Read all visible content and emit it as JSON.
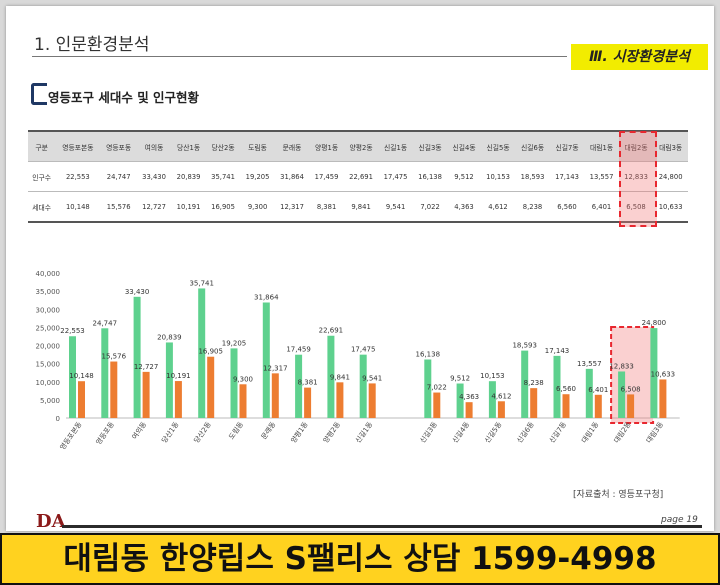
{
  "header": {
    "section_title": "1. 인문환경분석",
    "section_tag": "Ⅲ. 시장환경분석",
    "subtitle": "영등포구 세대수 및 인구현황"
  },
  "table": {
    "columns": [
      "구분",
      "영등포본동",
      "영등포동",
      "여의동",
      "당산1동",
      "당산2동",
      "도림동",
      "문래동",
      "양평1동",
      "양평2동",
      "신길1동",
      "신길3동",
      "신길4동",
      "신길5동",
      "신길6동",
      "신길7동",
      "대림1동",
      "대림2동",
      "대림3동"
    ],
    "rows": [
      {
        "label": "인구수",
        "values": [
          "22,553",
          "24,747",
          "33,430",
          "20,839",
          "35,741",
          "19,205",
          "31,864",
          "17,459",
          "22,691",
          "17,475",
          "16,138",
          "9,512",
          "10,153",
          "18,593",
          "17,143",
          "13,557",
          "12,833",
          "24,800"
        ]
      },
      {
        "label": "세대수",
        "values": [
          "10,148",
          "15,576",
          "12,727",
          "10,191",
          "16,905",
          "9,300",
          "12,317",
          "8,381",
          "9,841",
          "9,541",
          "7,022",
          "4,363",
          "4,612",
          "8,238",
          "6,560",
          "6,401",
          "6,508",
          "10,633"
        ]
      }
    ],
    "highlight_column": "대림2동"
  },
  "chart_data": {
    "type": "bar",
    "categories": [
      "영등포본동",
      "영등포동",
      "여의동",
      "당산1동",
      "당산2동",
      "도림동",
      "문래동",
      "양평1동",
      "양평2동",
      "신길1동",
      "",
      "신길3동",
      "신길4동",
      "신길5동",
      "신길6동",
      "신길7동",
      "대림1동",
      "대림2동",
      "대림3동"
    ],
    "series": [
      {
        "values": [
          22553,
          24747,
          33430,
          20839,
          35741,
          19205,
          31864,
          17459,
          22691,
          17475,
          null,
          16138,
          9512,
          10153,
          18593,
          17143,
          13557,
          12833,
          24800
        ],
        "color": "#5ed18e"
      },
      {
        "values": [
          10148,
          15576,
          12727,
          10191,
          16905,
          9300,
          12317,
          8381,
          9841,
          9541,
          null,
          7022,
          4363,
          4612,
          8238,
          6560,
          6401,
          6508,
          10633
        ],
        "color": "#ed7d31"
      }
    ],
    "ylim": [
      0,
      40000
    ],
    "yticks": [
      "0",
      "5,000",
      "10,000",
      "15,000",
      "20,000",
      "25,000",
      "30,000",
      "35,000",
      "40,000"
    ],
    "grid": false,
    "highlight_category": "대림2동"
  },
  "source_note": "[자료출처 : 영등포구청]",
  "page_label": "page  19",
  "logo_text": "DA",
  "banner": "대림동 한양립스 S팰리스 상담 1599-4998"
}
